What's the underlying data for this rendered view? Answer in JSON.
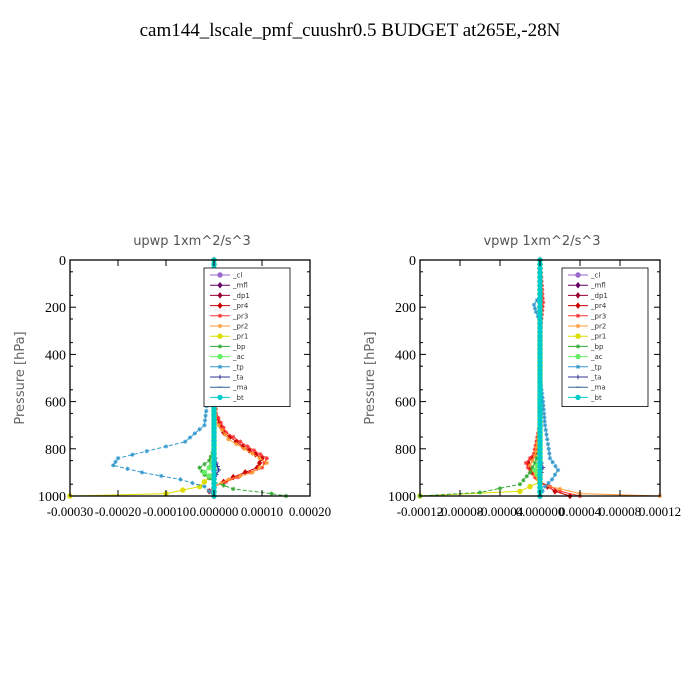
{
  "title": "cam144_lscale_pmf_cuushr0.5  BUDGET at265E,-28N",
  "chart_data": [
    {
      "type": "line",
      "title": "upwp   1xm^2/s^3",
      "ylabel": "Pressure [hPa]",
      "ylim": [
        1000,
        0
      ],
      "xlim": [
        -0.0003,
        0.0002
      ],
      "xticks": [
        -0.0003,
        -0.0002,
        -0.0001,
        0.0,
        0.0001,
        0.0002
      ],
      "xtick_labels": [
        "-0.00030",
        "-0.00020",
        "-0.00010",
        "0.000000",
        "0.00010",
        "0.00020"
      ],
      "yticks": [
        0,
        200,
        400,
        600,
        800,
        1000
      ],
      "legend_position": "top-right",
      "series": [
        {
          "name": "_cl",
          "color": "#9966cc",
          "marker": "circle",
          "points": [
            [
              0.0,
              0
            ],
            [
              0.0,
              200
            ],
            [
              0.0,
              400
            ],
            [
              0.0,
              600
            ],
            [
              0.0,
              800
            ],
            [
              0.0,
              1000
            ]
          ]
        },
        {
          "name": "_mfl",
          "color": "#660066",
          "marker": "diamond",
          "points": [
            [
              0.0,
              0
            ],
            [
              0.0,
              200
            ],
            [
              0.0,
              400
            ],
            [
              0.0,
              600
            ],
            [
              0.0,
              800
            ],
            [
              0.0,
              1000
            ]
          ]
        },
        {
          "name": "_dp1",
          "color": "#990033",
          "marker": "diamond",
          "points": [
            [
              0.0,
              0
            ],
            [
              0.0,
              200
            ],
            [
              0.0,
              400
            ],
            [
              0.0,
              600
            ],
            [
              0.0,
              800
            ],
            [
              0.0,
              1000
            ]
          ]
        },
        {
          "name": "_pr4",
          "color": "#cc0000",
          "marker": "diamond",
          "points": [
            [
              0.0,
              0
            ],
            [
              0.0,
              300
            ],
            [
              0.0,
              500
            ],
            [
              3e-06,
              650
            ],
            [
              2e-05,
              730
            ],
            [
              6e-05,
              790
            ],
            [
              0.0001,
              840
            ],
            [
              9e-05,
              880
            ],
            [
              4e-05,
              920
            ],
            [
              0.0,
              960
            ],
            [
              -1e-05,
              980
            ],
            [
              0.0,
              1000
            ]
          ]
        },
        {
          "name": "_pr3",
          "color": "#ff3333",
          "marker": "star",
          "points": [
            [
              0.0,
              0
            ],
            [
              0.0,
              300
            ],
            [
              0.0,
              500
            ],
            [
              4e-06,
              650
            ],
            [
              2.5e-05,
              730
            ],
            [
              7e-05,
              790
            ],
            [
              0.00011,
              840
            ],
            [
              0.0001,
              880
            ],
            [
              5e-05,
              920
            ],
            [
              0.0,
              960
            ],
            [
              -1e-05,
              980
            ],
            [
              0.0,
              1000
            ]
          ]
        },
        {
          "name": "_pr2",
          "color": "#ff9933",
          "marker": "star",
          "points": [
            [
              0.0,
              0
            ],
            [
              0.0,
              500
            ],
            [
              3e-06,
              680
            ],
            [
              3e-05,
              760
            ],
            [
              8e-05,
              820
            ],
            [
              0.00011,
              860
            ],
            [
              8e-05,
              900
            ],
            [
              3e-05,
              930
            ],
            [
              0.0,
              960
            ],
            [
              0.0,
              1000
            ]
          ]
        },
        {
          "name": "_pr1",
          "color": "#dddd00",
          "marker": "circle",
          "points": [
            [
              0.0,
              0
            ],
            [
              0.0,
              900
            ],
            [
              -3e-05,
              960
            ],
            [
              -0.0001,
              990
            ],
            [
              -0.0003,
              1000
            ]
          ]
        },
        {
          "name": "_bp",
          "color": "#33aa33",
          "marker": "star",
          "points": [
            [
              0.0,
              0
            ],
            [
              0.0,
              800
            ],
            [
              -1e-05,
              850
            ],
            [
              -3e-05,
              880
            ],
            [
              -2e-05,
              910
            ],
            [
              0.0,
              940
            ],
            [
              4e-05,
              970
            ],
            [
              0.00012,
              990
            ],
            [
              0.00015,
              1000
            ]
          ]
        },
        {
          "name": "_ac",
          "color": "#66ee66",
          "marker": "circle",
          "points": [
            [
              0.0,
              0
            ],
            [
              0.0,
              850
            ],
            [
              -1e-05,
              880
            ],
            [
              -2e-05,
              900
            ],
            [
              0.0,
              930
            ],
            [
              0.0,
              1000
            ]
          ]
        },
        {
          "name": "_tp",
          "color": "#3399cc",
          "marker": "star",
          "points": [
            [
              0.0,
              0
            ],
            [
              0.0,
              400
            ],
            [
              -5e-06,
              500
            ],
            [
              -1e-05,
              560
            ],
            [
              -1.5e-05,
              620
            ],
            [
              -2e-05,
              700
            ],
            [
              -6e-05,
              770
            ],
            [
              -0.00014,
              810
            ],
            [
              -0.0002,
              840
            ],
            [
              -0.00021,
              870
            ],
            [
              -0.00015,
              900
            ],
            [
              -7e-05,
              930
            ],
            [
              -2e-05,
              960
            ],
            [
              0.0,
              1000
            ]
          ]
        },
        {
          "name": "_ta",
          "color": "#333399",
          "marker": "plus",
          "points": [
            [
              0.0,
              0
            ],
            [
              0.0,
              820
            ],
            [
              5e-06,
              860
            ],
            [
              1e-05,
              890
            ],
            [
              0.0,
              930
            ],
            [
              0.0,
              1000
            ]
          ]
        },
        {
          "name": "_ma",
          "color": "#336699",
          "marker": "dash",
          "points": [
            [
              0.0,
              0
            ],
            [
              0.0,
              1000
            ]
          ]
        },
        {
          "name": "_bt",
          "color": "#00cccc",
          "marker": "circle",
          "points": [
            [
              0.0,
              0
            ],
            [
              0.0,
              1000
            ]
          ]
        }
      ]
    },
    {
      "type": "line",
      "title": "vpwp   1xm^2/s^3",
      "ylabel": "Pressure [hPa]",
      "ylim": [
        1000,
        0
      ],
      "xlim": [
        -0.00012,
        0.00012
      ],
      "xticks": [
        -0.00012,
        -8e-05,
        -4e-05,
        0.0,
        4e-05,
        8e-05,
        0.00012
      ],
      "xtick_labels": [
        "-0.00012",
        "-0.00008",
        "-0.00004",
        "0.000000",
        "0.00004",
        "0.00008",
        "0.00012"
      ],
      "yticks": [
        0,
        200,
        400,
        600,
        800,
        1000
      ],
      "legend_position": "top-right",
      "series": [
        {
          "name": "_cl",
          "color": "#9966cc",
          "marker": "circle",
          "points": [
            [
              0.0,
              0
            ],
            [
              0.0,
              200
            ],
            [
              0.0,
              400
            ],
            [
              0.0,
              600
            ],
            [
              0.0,
              800
            ],
            [
              0.0,
              1000
            ]
          ]
        },
        {
          "name": "_mfl",
          "color": "#660066",
          "marker": "diamond",
          "points": [
            [
              0.0,
              0
            ],
            [
              0.0,
              200
            ],
            [
              0.0,
              400
            ],
            [
              0.0,
              600
            ],
            [
              0.0,
              800
            ],
            [
              0.0,
              1000
            ]
          ]
        },
        {
          "name": "_dp1",
          "color": "#990033",
          "marker": "diamond",
          "points": [
            [
              0.0,
              0
            ],
            [
              0.0,
              200
            ],
            [
              0.0,
              400
            ],
            [
              0.0,
              600
            ],
            [
              0.0,
              800
            ],
            [
              0.0,
              1000
            ]
          ]
        },
        {
          "name": "_pr4",
          "color": "#cc0000",
          "marker": "diamond",
          "points": [
            [
              0.0,
              0
            ],
            [
              2e-06,
              180
            ],
            [
              0.0,
              300
            ],
            [
              0.0,
              700
            ],
            [
              -5e-06,
              820
            ],
            [
              -1.2e-05,
              860
            ],
            [
              -8e-06,
              900
            ],
            [
              0.0,
              940
            ],
            [
              1.5e-05,
              980
            ],
            [
              3e-05,
              1000
            ]
          ]
        },
        {
          "name": "_pr3",
          "color": "#ff3333",
          "marker": "star",
          "points": [
            [
              0.0,
              0
            ],
            [
              3e-06,
              180
            ],
            [
              0.0,
              300
            ],
            [
              0.0,
              700
            ],
            [
              -6e-06,
              820
            ],
            [
              -1.4e-05,
              860
            ],
            [
              -1e-05,
              900
            ],
            [
              0.0,
              940
            ],
            [
              2e-05,
              980
            ],
            [
              4e-05,
              1000
            ]
          ]
        },
        {
          "name": "_pr2",
          "color": "#ff9933",
          "marker": "star",
          "points": [
            [
              0.0,
              0
            ],
            [
              0.0,
              700
            ],
            [
              -5e-06,
              830
            ],
            [
              -1e-05,
              870
            ],
            [
              -5e-06,
              910
            ],
            [
              0.0,
              950
            ],
            [
              4e-05,
              990
            ],
            [
              0.00012,
              1000
            ]
          ]
        },
        {
          "name": "_pr1",
          "color": "#dddd00",
          "marker": "circle",
          "points": [
            [
              0.0,
              0
            ],
            [
              0.0,
              940
            ],
            [
              -2e-05,
              980
            ],
            [
              -0.00012,
              1000
            ]
          ]
        },
        {
          "name": "_bp",
          "color": "#33aa33",
          "marker": "star",
          "points": [
            [
              0.0,
              0
            ],
            [
              0.0,
              800
            ],
            [
              -5e-06,
              860
            ],
            [
              -1e-05,
              900
            ],
            [
              -2e-05,
              950
            ],
            [
              -6e-05,
              985
            ],
            [
              -0.00012,
              1000
            ]
          ]
        },
        {
          "name": "_ac",
          "color": "#66ee66",
          "marker": "circle",
          "points": [
            [
              0.0,
              0
            ],
            [
              0.0,
              850
            ],
            [
              -5e-06,
              890
            ],
            [
              0.0,
              930
            ],
            [
              0.0,
              1000
            ]
          ]
        },
        {
          "name": "_tp",
          "color": "#3399cc",
          "marker": "star",
          "points": [
            [
              0.0,
              0
            ],
            [
              0.0,
              150
            ],
            [
              -6e-06,
              190
            ],
            [
              -4e-06,
              220
            ],
            [
              0.0,
              260
            ],
            [
              0.0,
              500
            ],
            [
              3e-06,
              600
            ],
            [
              5e-06,
              700
            ],
            [
              8e-06,
              780
            ],
            [
              1e-05,
              840
            ],
            [
              1.8e-05,
              890
            ],
            [
              1.2e-05,
              930
            ],
            [
              5e-06,
              960
            ],
            [
              0.0,
              1000
            ]
          ]
        },
        {
          "name": "_ta",
          "color": "#333399",
          "marker": "plus",
          "points": [
            [
              0.0,
              0
            ],
            [
              0.0,
              840
            ],
            [
              3e-06,
              880
            ],
            [
              0.0,
              920
            ],
            [
              0.0,
              1000
            ]
          ]
        },
        {
          "name": "_ma",
          "color": "#336699",
          "marker": "dash",
          "points": [
            [
              0.0,
              0
            ],
            [
              0.0,
              1000
            ]
          ]
        },
        {
          "name": "_bt",
          "color": "#00cccc",
          "marker": "circle",
          "points": [
            [
              0.0,
              0
            ],
            [
              0.0,
              1000
            ]
          ]
        }
      ]
    }
  ]
}
